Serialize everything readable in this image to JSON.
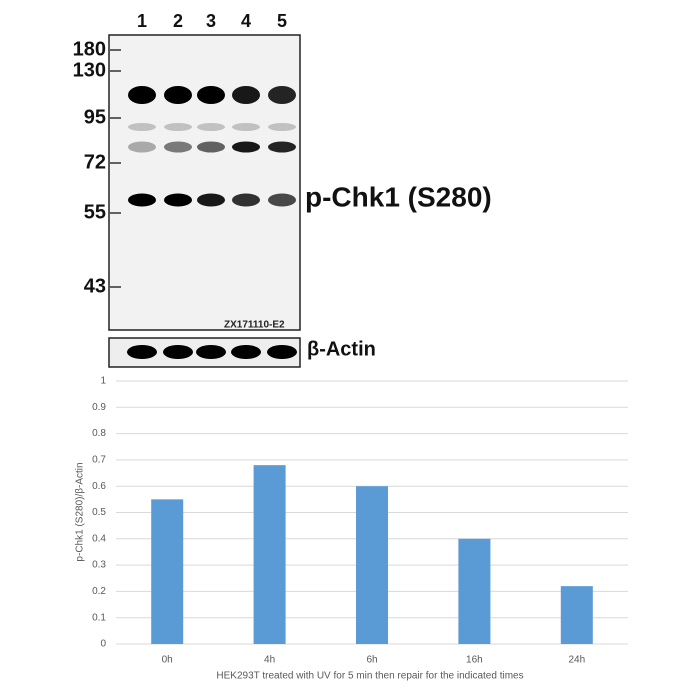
{
  "blot": {
    "lanes": [
      "1",
      "2",
      "3",
      "4",
      "5"
    ],
    "markers": [
      180,
      130,
      95,
      72,
      55,
      43
    ],
    "target": "p-Chk1 (S280)",
    "lot": "ZX171110-E2",
    "control": "β-Actin"
  },
  "chart_data": {
    "type": "bar",
    "categories": [
      "0h",
      "4h",
      "6h",
      "16h",
      "24h"
    ],
    "values": [
      0.55,
      0.68,
      0.6,
      0.4,
      0.22
    ],
    "color": "#5b9bd5",
    "ylim": [
      0,
      1
    ],
    "yticks": [
      0,
      0.1,
      0.2,
      0.3,
      0.4,
      0.5,
      0.6,
      0.7,
      0.8,
      0.9,
      1
    ],
    "grid": true,
    "ylabel": "p-Chk1 (S280)/β-Actin",
    "xlabel": "HEK293T treated with UV for 5 min then repair for the indicated times"
  }
}
